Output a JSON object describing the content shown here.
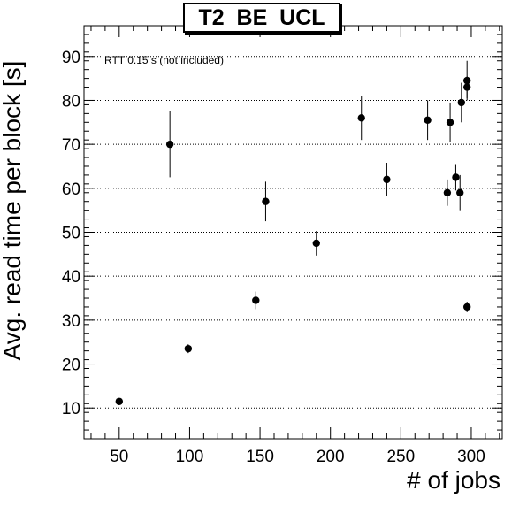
{
  "chart_data": {
    "type": "scatter",
    "title": "T2_BE_UCL",
    "xlabel": "# of jobs",
    "ylabel": "Avg. read time per block [s]",
    "annotation": "RTT 0.15 s (not included)",
    "xlim": [
      25,
      322
    ],
    "ylim": [
      3,
      97
    ],
    "xticks": [
      50,
      100,
      150,
      200,
      250,
      300
    ],
    "yticks": [
      10,
      20,
      30,
      40,
      50,
      60,
      70,
      80,
      90
    ],
    "grid": "horizontal dotted at major y ticks",
    "marker_color": "#000000",
    "points": [
      {
        "x": 50,
        "y": 11.5,
        "err": 0.5
      },
      {
        "x": 86,
        "y": 70,
        "err": 7.5
      },
      {
        "x": 99,
        "y": 23.5,
        "err": 1.0
      },
      {
        "x": 147,
        "y": 34.5,
        "err": 2.0
      },
      {
        "x": 154,
        "y": 57,
        "err": 4.5
      },
      {
        "x": 190,
        "y": 47.5,
        "err": 2.8
      },
      {
        "x": 222,
        "y": 76,
        "err": 5.0
      },
      {
        "x": 240,
        "y": 62,
        "err": 3.8
      },
      {
        "x": 269,
        "y": 75.5,
        "err": 4.5
      },
      {
        "x": 283,
        "y": 59,
        "err": 3.0
      },
      {
        "x": 285,
        "y": 75,
        "err": 4.5
      },
      {
        "x": 289,
        "y": 62.5,
        "err": 3.0
      },
      {
        "x": 292,
        "y": 59,
        "err": 4.0
      },
      {
        "x": 293,
        "y": 79.5,
        "err": 4.5
      },
      {
        "x": 297,
        "y": 84.5,
        "err": 4.5
      },
      {
        "x": 297,
        "y": 83,
        "err": 2.5
      },
      {
        "x": 297,
        "y": 33,
        "err": 1.2
      }
    ]
  }
}
